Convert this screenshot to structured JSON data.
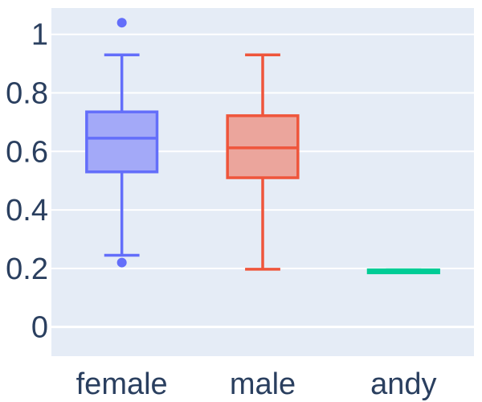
{
  "chart_data": {
    "type": "box",
    "title": "",
    "xlabel": "",
    "ylabel": "",
    "categories": [
      "female",
      "male",
      "andy"
    ],
    "ylim": [
      -0.1,
      1.09
    ],
    "yticks": [
      0,
      0.2,
      0.4,
      0.6,
      0.8,
      1
    ],
    "ytick_labels": [
      "0",
      "0.2",
      "0.4",
      "0.6",
      "0.8",
      "1"
    ],
    "grid": true,
    "legend": false,
    "series": [
      {
        "category": "female",
        "min": 0.245,
        "q1": 0.53,
        "median": 0.645,
        "q3": 0.735,
        "max": 0.93,
        "outliers": [
          1.04,
          0.22
        ],
        "color": "#636efa",
        "fill": "#a3a9f8"
      },
      {
        "category": "male",
        "min": 0.197,
        "q1": 0.51,
        "median": 0.612,
        "q3": 0.722,
        "max": 0.93,
        "outliers": [],
        "color": "#ef553b",
        "fill": "#eba59c"
      },
      {
        "category": "andy",
        "min": 0.185,
        "q1": 0.185,
        "median": 0.19,
        "q3": 0.195,
        "max": 0.195,
        "outliers": [],
        "color": "#00cc96",
        "fill": "#00cc96"
      }
    ],
    "plot_bg": "#e5ecf6",
    "grid_color": "#ffffff"
  }
}
